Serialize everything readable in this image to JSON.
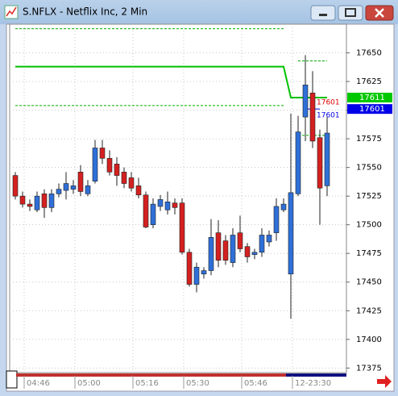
{
  "chart_data": {
    "type": "candlestick",
    "title": "S.NFLX - Netflix Inc, 2 Min",
    "categories": [
      null,
      "04:46",
      null,
      null,
      null,
      null,
      null,
      null,
      "05:00",
      null,
      null,
      null,
      null,
      null,
      null,
      null,
      "05:16",
      null,
      null,
      null,
      null,
      null,
      null,
      "05:30",
      null,
      null,
      null,
      null,
      null,
      null,
      null,
      "05:46",
      null,
      null,
      null,
      null,
      null,
      null,
      "12-23:30",
      null,
      null,
      null,
      null,
      null
    ],
    "open": [
      17543,
      17525,
      17518,
      17513,
      17527,
      17515,
      17527,
      17530,
      17531,
      17546,
      17527,
      17538,
      17567,
      17558,
      17553,
      17546,
      17541,
      17534,
      17526,
      17500,
      17516,
      17513,
      17519,
      17519,
      17476,
      17448,
      17457,
      17460,
      17493,
      17486,
      17467,
      17493,
      17481,
      17474,
      17476,
      17485,
      17493,
      17513,
      17457,
      17527,
      17594,
      17615,
      17576,
      17534
    ],
    "high": [
      17546,
      17529,
      17522,
      17529,
      17531,
      17531,
      17536,
      17546,
      17539,
      17552,
      17539,
      17574,
      17574,
      17565,
      17559,
      17550,
      17546,
      17541,
      17529,
      17523,
      17526,
      17529,
      17523,
      17523,
      17479,
      17467,
      17463,
      17505,
      17504,
      17491,
      17497,
      17508,
      17484,
      17479,
      17497,
      17495,
      17523,
      17523,
      17597,
      17595,
      17648,
      17634,
      17583,
      17594
    ],
    "low": [
      17522,
      17515,
      17512,
      17511,
      17506,
      17511,
      17524,
      17522,
      17527,
      17525,
      17525,
      17536,
      17553,
      17543,
      17534,
      17532,
      17529,
      17523,
      17497,
      17497,
      17512,
      17509,
      17509,
      17474,
      17446,
      17441,
      17453,
      17456,
      17463,
      17465,
      17463,
      17476,
      17467,
      17470,
      17472,
      17481,
      17486,
      17511,
      17418,
      17525,
      17573,
      17567,
      17500,
      17525
    ],
    "close": [
      17525,
      17518,
      17516,
      17525,
      17515,
      17527,
      17531,
      17536,
      17534,
      17529,
      17534,
      17567,
      17558,
      17546,
      17543,
      17536,
      17532,
      17526,
      17498,
      17518,
      17522,
      17520,
      17515,
      17476,
      17448,
      17463,
      17460,
      17489,
      17469,
      17469,
      17491,
      17479,
      17472,
      17476,
      17491,
      17491,
      17516,
      17518,
      17528,
      17581,
      17622,
      17573,
      17532,
      17580
    ],
    "up_color": "#2f6fd8",
    "down_color": "#d42020",
    "ylim": [
      17371,
      17675
    ],
    "yticks": [
      17375,
      17400,
      17425,
      17450,
      17475,
      17500,
      17525,
      17550,
      17575,
      17600,
      17625,
      17650
    ],
    "grid": true,
    "level_lines": [
      {
        "value": 17671,
        "from": 0,
        "to": 37,
        "color": "#00b000",
        "style": "dashed"
      },
      {
        "value": 17604,
        "from": 0,
        "to": 37,
        "color": "#00b000",
        "style": "dashed"
      },
      {
        "value": 17643,
        "from": 39,
        "to": 43,
        "color": "#00b000",
        "style": "dashed"
      },
      {
        "value": 17578,
        "from": 39,
        "to": 43,
        "color": "#00b000",
        "style": "dashed"
      },
      {
        "value": 17601,
        "from": 40,
        "to": 42,
        "color": "#0000e0",
        "style": "solid"
      }
    ],
    "trend_line": {
      "color": "#00c000",
      "x": [
        0,
        37,
        38,
        43
      ],
      "values": [
        17638,
        17638,
        17611,
        17611
      ]
    },
    "price_tags": [
      {
        "value": 17611,
        "label": "17611",
        "color": "#00c800"
      },
      {
        "value": 17601,
        "label": "17601",
        "color": "#0000e8"
      }
    ],
    "annotations": [
      {
        "text": "17601",
        "color": "#e00000"
      },
      {
        "text": "17601",
        "color": "#0000e0"
      }
    ]
  }
}
